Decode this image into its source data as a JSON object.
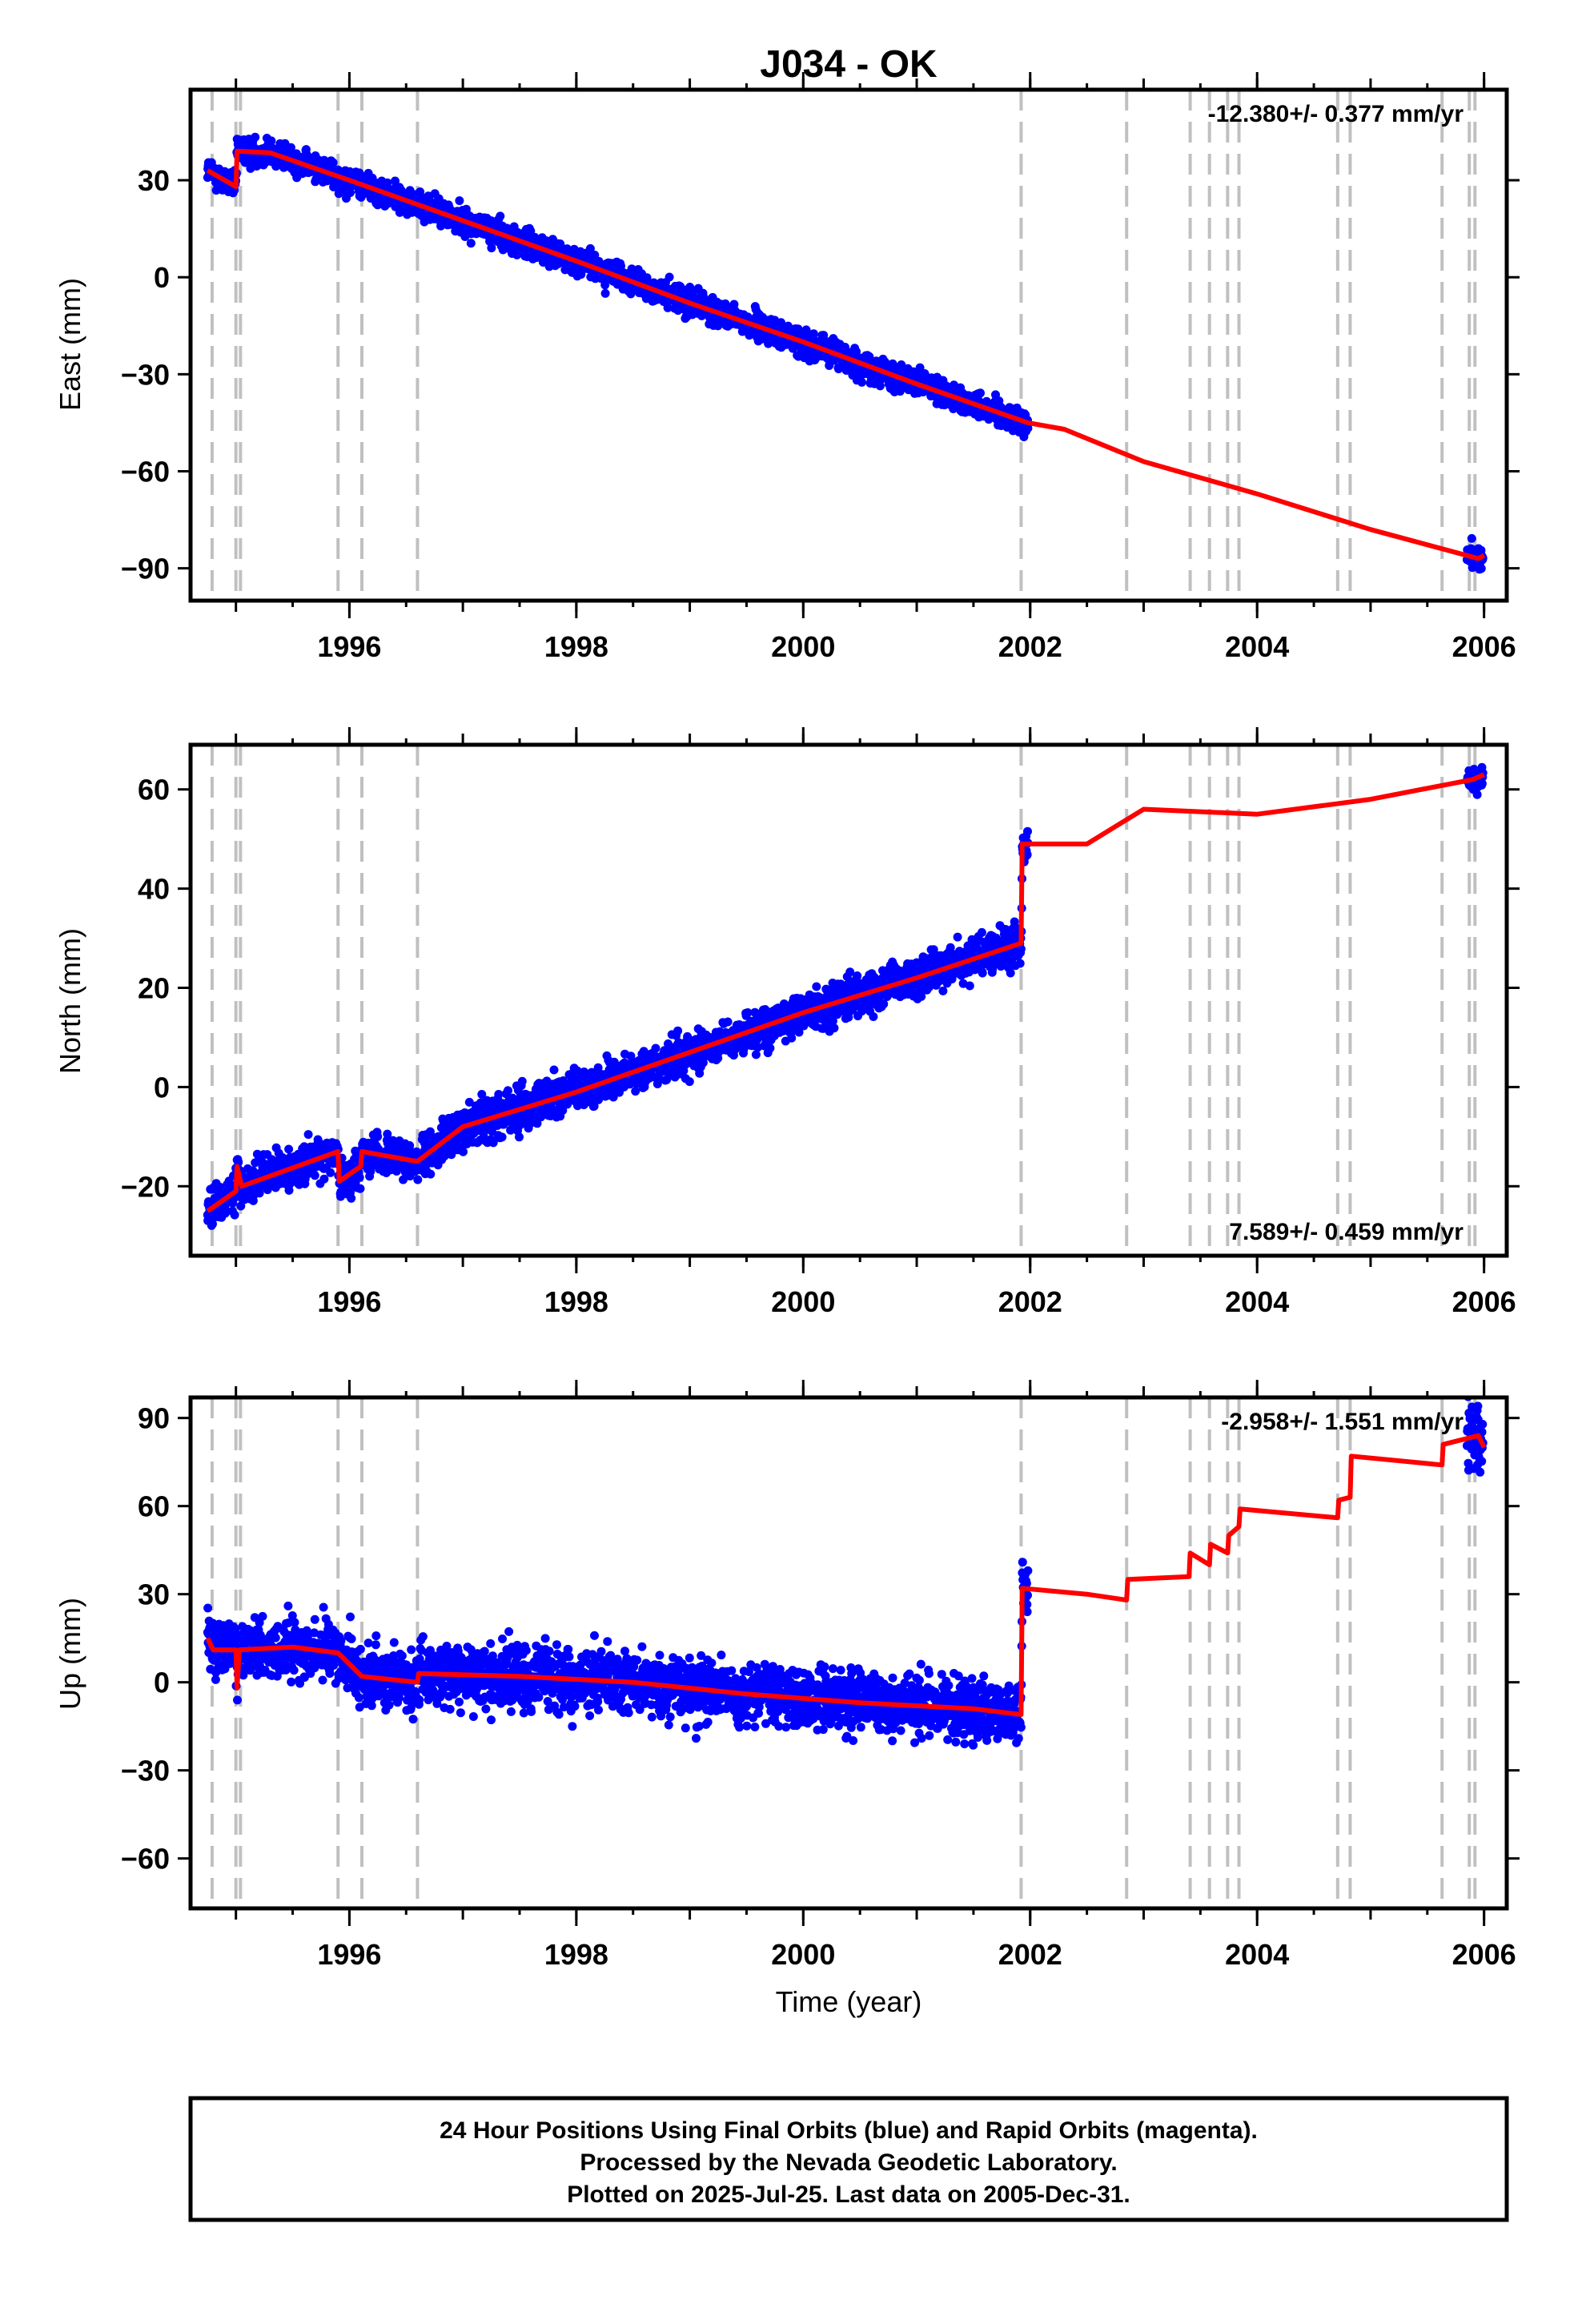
{
  "title": "J034 - OK",
  "xlabel": "Time (year)",
  "footer": {
    "line1": "24 Hour Positions Using Final Orbits (blue) and Rapid Orbits (magenta).",
    "line2": "Processed by the Nevada Geodetic Laboratory.",
    "line3": "Plotted on 2025-Jul-25. Last data on 2005-Dec-31."
  },
  "colors": {
    "final_orbit_points": "#0000ff",
    "model_line": "#ff0000",
    "event_lines": "#c0c0c0",
    "frame": "#000000"
  },
  "chart_data": [
    {
      "type": "scatter",
      "component": "East",
      "ylabel": "East (mm)",
      "rate_label": "-12.380+/- 0.377 mm/yr",
      "rate_position": "top-right",
      "xlim": [
        1994.6,
        2006.2
      ],
      "ylim": [
        -100,
        58
      ],
      "xticks": [
        "1996",
        "1998",
        "2000",
        "2002",
        "2004",
        "2006"
      ],
      "yticks": [
        "30",
        "0",
        "−30",
        "−60",
        "−90"
      ],
      "ytick_values": [
        30,
        0,
        -30,
        -60,
        -90
      ],
      "grid": false,
      "event_lines_x": [
        1994.79,
        1995.0,
        1995.04,
        1995.9,
        1996.11,
        1996.6,
        2001.92,
        2002.85,
        2003.41,
        2003.58,
        2003.74,
        2003.84,
        2004.71,
        2004.82,
        2005.63,
        2005.87,
        2005.92
      ],
      "points_segments": [
        {
          "x_start": 1994.75,
          "x_end": 2001.98,
          "scatter_mm": 4
        },
        {
          "x_start": 2005.85,
          "x_end": 2005.99,
          "scatter_mm": 4
        }
      ],
      "model_line": [
        [
          1994.75,
          33
        ],
        [
          1995.0,
          28
        ],
        [
          1995.01,
          39
        ],
        [
          1995.3,
          38.5
        ],
        [
          1996.0,
          30
        ],
        [
          1997.0,
          17.5
        ],
        [
          1998.0,
          5
        ],
        [
          1999.0,
          -8
        ],
        [
          2000.0,
          -20
        ],
        [
          2001.0,
          -33
        ],
        [
          2001.98,
          -45
        ],
        [
          2002.3,
          -47
        ],
        [
          2003.0,
          -57
        ],
        [
          2004.0,
          -67
        ],
        [
          2005.0,
          -78
        ],
        [
          2005.95,
          -87
        ],
        [
          2006.0,
          -86
        ]
      ]
    },
    {
      "type": "scatter",
      "component": "North",
      "ylabel": "North (mm)",
      "rate_label": "7.589+/- 0.459 mm/yr",
      "rate_position": "bottom-right",
      "xlim": [
        1994.6,
        2006.2
      ],
      "ylim": [
        -34,
        69
      ],
      "xticks": [
        "1996",
        "1998",
        "2000",
        "2002",
        "2004",
        "2006"
      ],
      "yticks": [
        "60",
        "40",
        "20",
        "0",
        "−20"
      ],
      "ytick_values": [
        60,
        40,
        20,
        0,
        -20
      ],
      "grid": false,
      "event_lines_x": [
        1994.79,
        1995.0,
        1995.04,
        1995.9,
        1996.11,
        1996.6,
        2001.92,
        2002.85,
        2003.41,
        2003.58,
        2003.74,
        2003.84,
        2004.71,
        2004.82,
        2005.63,
        2005.87,
        2005.92
      ],
      "points_segments": [
        {
          "x_start": 1994.75,
          "x_end": 2001.98,
          "scatter_mm": 4
        },
        {
          "x_start": 2005.85,
          "x_end": 2005.99,
          "scatter_mm": 2
        }
      ],
      "model_line": [
        [
          1994.75,
          -25
        ],
        [
          1995.0,
          -21
        ],
        [
          1995.01,
          -16
        ],
        [
          1995.05,
          -20
        ],
        [
          1995.9,
          -13
        ],
        [
          1995.91,
          -19
        ],
        [
          1996.1,
          -16
        ],
        [
          1996.11,
          -13
        ],
        [
          1996.6,
          -15
        ],
        [
          1997.0,
          -8
        ],
        [
          1998.0,
          -1
        ],
        [
          1999.0,
          7
        ],
        [
          2000.0,
          15
        ],
        [
          2001.0,
          22
        ],
        [
          2001.92,
          29
        ],
        [
          2001.93,
          49
        ],
        [
          2002.5,
          49
        ],
        [
          2003.0,
          56
        ],
        [
          2004.0,
          55
        ],
        [
          2005.0,
          58
        ],
        [
          2005.9,
          62
        ],
        [
          2006.0,
          63
        ]
      ]
    },
    {
      "type": "scatter",
      "component": "Up",
      "ylabel": "Up (mm)",
      "rate_label": "-2.958+/- 1.551 mm/yr",
      "rate_position": "top-right",
      "xlim": [
        1994.6,
        2006.2
      ],
      "ylim": [
        -77,
        97
      ],
      "xticks": [
        "1996",
        "1998",
        "2000",
        "2002",
        "2004",
        "2006"
      ],
      "yticks": [
        "90",
        "60",
        "30",
        "0",
        "−30",
        "−60"
      ],
      "ytick_values": [
        90,
        60,
        30,
        0,
        -30,
        -60
      ],
      "grid": false,
      "event_lines_x": [
        1994.79,
        1995.0,
        1995.04,
        1995.9,
        1996.11,
        1996.6,
        2001.92,
        2002.85,
        2003.41,
        2003.58,
        2003.74,
        2003.84,
        2004.71,
        2004.82,
        2005.63,
        2005.87,
        2005.92
      ],
      "points_segments": [
        {
          "x_start": 1994.75,
          "x_end": 2001.98,
          "scatter_mm": 10
        },
        {
          "x_start": 2005.85,
          "x_end": 2005.99,
          "scatter_mm": 12
        }
      ],
      "model_line": [
        [
          1994.75,
          15
        ],
        [
          1994.8,
          11
        ],
        [
          1995.0,
          11
        ],
        [
          1995.01,
          -2
        ],
        [
          1995.03,
          11
        ],
        [
          1995.5,
          12
        ],
        [
          1995.9,
          10
        ],
        [
          1996.11,
          2
        ],
        [
          1996.6,
          0
        ],
        [
          1996.61,
          3
        ],
        [
          1997.5,
          2
        ],
        [
          1998.5,
          0
        ],
        [
          1999.5,
          -4
        ],
        [
          2000.5,
          -7
        ],
        [
          2001.5,
          -9
        ],
        [
          2001.92,
          -11
        ],
        [
          2001.93,
          32
        ],
        [
          2002.5,
          30
        ],
        [
          2002.85,
          28
        ],
        [
          2002.86,
          35
        ],
        [
          2003.4,
          36
        ],
        [
          2003.41,
          44
        ],
        [
          2003.58,
          40
        ],
        [
          2003.59,
          47
        ],
        [
          2003.74,
          44
        ],
        [
          2003.75,
          50
        ],
        [
          2003.84,
          53
        ],
        [
          2003.85,
          59
        ],
        [
          2004.71,
          56
        ],
        [
          2004.72,
          62
        ],
        [
          2004.82,
          63
        ],
        [
          2004.83,
          77
        ],
        [
          2005.63,
          74
        ],
        [
          2005.64,
          81
        ],
        [
          2005.95,
          84
        ],
        [
          2006.0,
          80
        ]
      ]
    }
  ]
}
